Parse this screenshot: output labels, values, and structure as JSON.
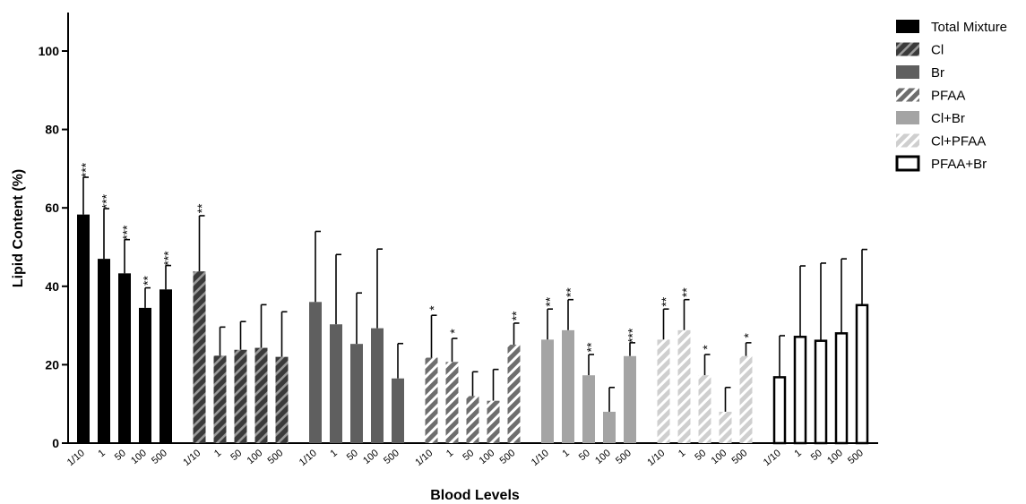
{
  "chart_data": {
    "type": "bar",
    "xlabel": "Blood Levels",
    "ylabel": "Lipid Content (%)",
    "ylim": [
      0,
      110
    ],
    "yticks": [
      "0",
      "20",
      "40",
      "60",
      "80",
      "100"
    ],
    "categories": [
      "1/10",
      "1",
      "50",
      "100",
      "500"
    ],
    "legend_position": "top-right",
    "series": [
      {
        "name": "Total Mixture",
        "style": "solid",
        "color": "#000000",
        "values": [
          58.3,
          47.0,
          43.3,
          34.5,
          39.2
        ],
        "errors": [
          9.5,
          12.8,
          8.6,
          5.1,
          6.1
        ],
        "significance": [
          "***",
          "***",
          "***",
          "**",
          "***"
        ]
      },
      {
        "name": "Cl",
        "style": "hatched",
        "color": "#3a3a3a",
        "values": [
          43.8,
          22.3,
          23.8,
          24.3,
          22.0
        ],
        "errors": [
          14.2,
          7.3,
          7.2,
          11.0,
          11.5
        ],
        "significance": [
          "**",
          "",
          "",
          "",
          ""
        ]
      },
      {
        "name": "Br",
        "style": "solid",
        "color": "#5f5f5f",
        "values": [
          36.0,
          30.3,
          25.3,
          29.3,
          16.5
        ],
        "errors": [
          18.0,
          17.8,
          13.0,
          20.2,
          8.9
        ],
        "significance": [
          "",
          "",
          "",
          "",
          ""
        ]
      },
      {
        "name": "PFAA",
        "style": "hatched",
        "color": "#6e6e6e",
        "values": [
          21.8,
          20.7,
          12.0,
          10.8,
          25.1
        ],
        "errors": [
          10.8,
          6.0,
          6.2,
          8.0,
          5.5
        ],
        "significance": [
          "*",
          "*",
          "",
          "",
          "**"
        ]
      },
      {
        "name": "Cl+Br",
        "style": "solid",
        "color": "#a4a4a4",
        "values": [
          26.4,
          28.8,
          17.3,
          8.0,
          22.2
        ],
        "errors": [
          7.8,
          7.8,
          5.3,
          6.2,
          3.4
        ],
        "significance": [
          "**",
          "**",
          "**",
          "",
          "***"
        ]
      },
      {
        "name": "Cl+PFAA",
        "style": "hatched",
        "color": "#cfcfcf",
        "values": [
          26.4,
          28.8,
          17.3,
          8.0,
          22.2
        ],
        "errors": [
          7.8,
          7.8,
          5.3,
          6.2,
          3.4
        ],
        "significance": [
          "**",
          "**",
          "*",
          "",
          "*"
        ]
      },
      {
        "name": "PFAA+Br",
        "style": "outline",
        "color": "#000000",
        "values": [
          16.8,
          27.1,
          26.1,
          28.0,
          35.2
        ],
        "errors": [
          10.6,
          18.1,
          19.8,
          19.0,
          14.2
        ],
        "significance": [
          "",
          "",
          "",
          "",
          ""
        ]
      }
    ]
  }
}
